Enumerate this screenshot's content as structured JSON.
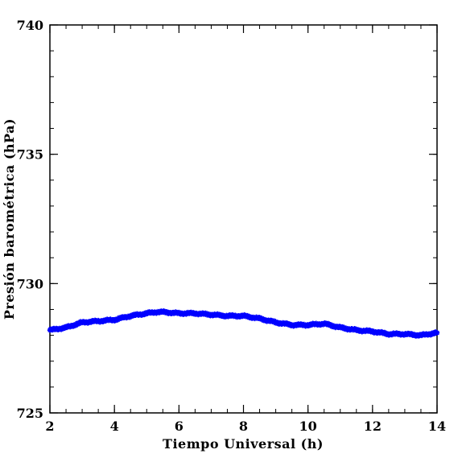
{
  "chart_data": {
    "type": "scatter",
    "title": "",
    "xlabel": "Tiempo Universal (h)",
    "ylabel": "Presión barométrica (hPa)",
    "xlim": [
      2,
      14
    ],
    "ylim": [
      725,
      740
    ],
    "x_ticks": [
      2,
      4,
      6,
      8,
      10,
      12,
      14
    ],
    "y_ticks": [
      725,
      730,
      735,
      740
    ],
    "x_tick_labels": [
      "2",
      "4",
      "6",
      "8",
      "10",
      "12",
      "14"
    ],
    "y_tick_labels": [
      "725",
      "730",
      "735",
      "740"
    ],
    "grid": false,
    "marker_color": "#0000ff",
    "series": [
      {
        "x": [
          2.0,
          2.5,
          3.0,
          3.5,
          4.0,
          4.5,
          5.0,
          5.3,
          5.5,
          6.0,
          6.5,
          7.0,
          7.5,
          8.0,
          8.5,
          9.0,
          9.5,
          10.0,
          10.5,
          11.0,
          11.5,
          12.0,
          12.5,
          13.0,
          13.5,
          14.0
        ],
        "y": [
          728.2,
          728.3,
          728.5,
          728.55,
          728.6,
          728.75,
          728.85,
          728.9,
          728.9,
          728.85,
          728.85,
          728.8,
          728.75,
          728.75,
          728.65,
          728.5,
          728.4,
          728.4,
          728.45,
          728.3,
          728.2,
          728.15,
          728.05,
          728.05,
          728.0,
          728.1
        ]
      }
    ]
  }
}
